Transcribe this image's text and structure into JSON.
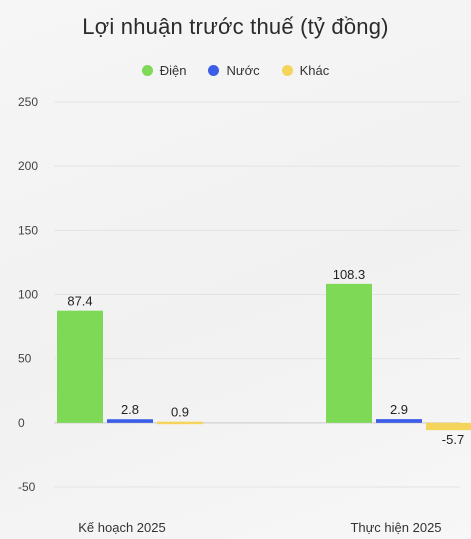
{
  "chart_data": {
    "type": "bar",
    "title": "Lợi nhuận trước thuế (tỷ đồng)",
    "categories": [
      "Kế hoạch 2025",
      "Thực hiện 2025"
    ],
    "series": [
      {
        "name": "Điện",
        "color": "#7ed957",
        "values": [
          87.4,
          108.3
        ],
        "labels": [
          "87.4",
          "108.3"
        ]
      },
      {
        "name": "Nước",
        "color": "#3b5de7",
        "values": [
          2.8,
          2.9
        ],
        "labels": [
          "2.8",
          "2.9"
        ]
      },
      {
        "name": "Khác",
        "color": "#f5d45c",
        "values": [
          0.9,
          -5.7
        ],
        "labels": [
          "0.9",
          "-5.7"
        ]
      }
    ],
    "yticks": [
      "250",
      "200",
      "150",
      "100",
      "50",
      "0",
      "-50"
    ],
    "ylim": [
      -50,
      250
    ],
    "grid": true,
    "legend_position": "top-center"
  }
}
